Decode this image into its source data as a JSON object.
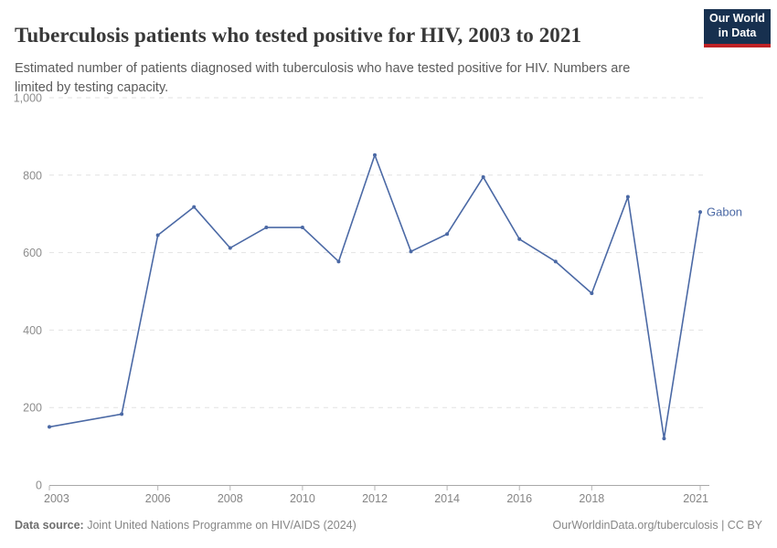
{
  "header": {
    "title": "Tuberculosis patients who tested positive for HIV, 2003 to 2021",
    "subtitle": "Estimated number of patients diagnosed with tuberculosis who have tested positive for HIV. Numbers are limited by testing capacity.",
    "logo": {
      "line1": "Our World",
      "line2": "in Data",
      "bg_color": "#17304f",
      "accent_color": "#bf2125"
    }
  },
  "chart_data": {
    "type": "line",
    "title": "Tuberculosis patients who tested positive for HIV, 2003 to 2021",
    "xlabel": "",
    "ylabel": "",
    "xlim": [
      2003,
      2021
    ],
    "ylim": [
      0,
      1000
    ],
    "grid": "horizontal-dashed",
    "legend_position": "end-of-line-label",
    "x_ticks": [
      2003,
      2006,
      2008,
      2010,
      2012,
      2014,
      2016,
      2018,
      2021
    ],
    "y_ticks": [
      0,
      200,
      400,
      600,
      800,
      1000
    ],
    "y_tick_labels": [
      "0",
      "200",
      "400",
      "600",
      "800",
      "1,000"
    ],
    "series": [
      {
        "name": "Gabon",
        "color": "#4b69a5",
        "points": [
          {
            "year": 2003,
            "value": 150
          },
          {
            "year": 2005,
            "value": 183
          },
          {
            "year": 2006,
            "value": 645
          },
          {
            "year": 2007,
            "value": 718
          },
          {
            "year": 2008,
            "value": 612
          },
          {
            "year": 2009,
            "value": 665
          },
          {
            "year": 2010,
            "value": 665
          },
          {
            "year": 2011,
            "value": 577
          },
          {
            "year": 2012,
            "value": 852
          },
          {
            "year": 2013,
            "value": 603
          },
          {
            "year": 2014,
            "value": 648
          },
          {
            "year": 2015,
            "value": 795
          },
          {
            "year": 2016,
            "value": 635
          },
          {
            "year": 2017,
            "value": 577
          },
          {
            "year": 2018,
            "value": 495
          },
          {
            "year": 2019,
            "value": 744
          },
          {
            "year": 2020,
            "value": 120
          },
          {
            "year": 2021,
            "value": 705
          }
        ]
      }
    ],
    "colors": {
      "gridline": "#e2e2e2",
      "axis_line": "#a9a9a9",
      "tick_mark": "#b5b5b5",
      "y_tick_label": "#8d8d8d",
      "x_tick_label": "#858585"
    }
  },
  "footer": {
    "datasource_label": "Data source:",
    "datasource_text": " Joint United Nations Programme on HIV/AIDS (2024)",
    "link": "OurWorldinData.org/tuberculosis",
    "separator": " | ",
    "license": "CC BY"
  }
}
